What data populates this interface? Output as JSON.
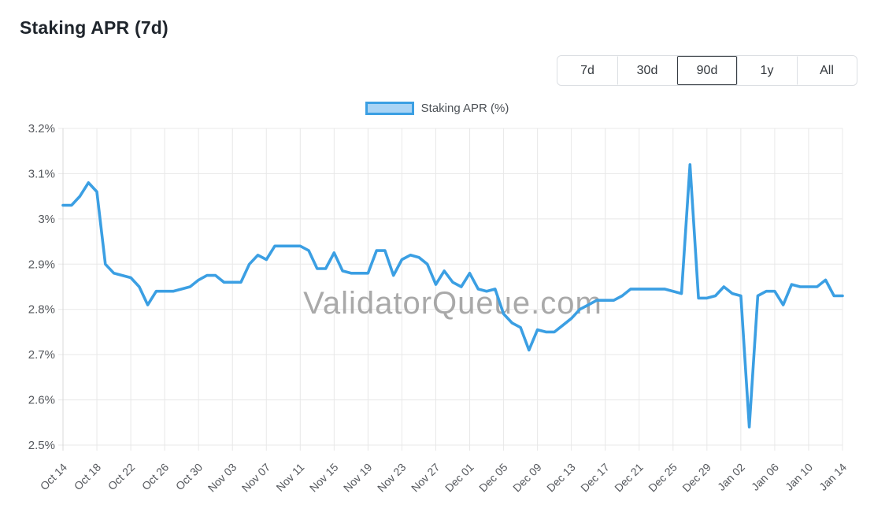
{
  "page": {
    "title": "Staking APR (7d)"
  },
  "range_buttons": {
    "items": [
      {
        "label": "7d",
        "active": false
      },
      {
        "label": "30d",
        "active": false
      },
      {
        "label": "90d",
        "active": true
      },
      {
        "label": "1y",
        "active": false
      },
      {
        "label": "All",
        "active": false
      }
    ]
  },
  "legend": {
    "label": "Staking APR (%)"
  },
  "watermark": "ValidatorQueue.com",
  "colors": {
    "line": "#3b9fe3",
    "legend_fill": "#a9d4f5",
    "grid": "#e8e8e8",
    "axis": "#d9d9d9",
    "tick_text": "#55585d",
    "watermark_text": "#9b9b9b",
    "active_button_border": "#363c42"
  },
  "chart_data": {
    "type": "line",
    "title": "Staking APR (7d)",
    "ylabel": "Staking APR (%)",
    "ylim": [
      2.5,
      3.2
    ],
    "y_ticks": [
      "3.2%",
      "3.1%",
      "3%",
      "2.9%",
      "2.8%",
      "2.7%",
      "2.6%",
      "2.5%"
    ],
    "y_tick_values": [
      3.2,
      3.1,
      3.0,
      2.9,
      2.8,
      2.7,
      2.6,
      2.5
    ],
    "grid": true,
    "legend_position": "top",
    "x_tick_step": 4,
    "x_tick_labels": [
      "Oct 14",
      "Oct 18",
      "Oct 22",
      "Oct 26",
      "Oct 30",
      "Nov 03",
      "Nov 07",
      "Nov 11",
      "Nov 15",
      "Nov 19",
      "Nov 23",
      "Nov 27",
      "Dec 01",
      "Dec 05",
      "Dec 09",
      "Dec 13",
      "Dec 17",
      "Dec 21",
      "Dec 25",
      "Dec 29",
      "Jan 02",
      "Jan 06",
      "Jan 10",
      "Jan 14"
    ],
    "x": [
      "Oct 14",
      "Oct 15",
      "Oct 16",
      "Oct 17",
      "Oct 18",
      "Oct 19",
      "Oct 20",
      "Oct 21",
      "Oct 22",
      "Oct 23",
      "Oct 24",
      "Oct 25",
      "Oct 26",
      "Oct 27",
      "Oct 28",
      "Oct 29",
      "Oct 30",
      "Oct 31",
      "Nov 01",
      "Nov 02",
      "Nov 03",
      "Nov 04",
      "Nov 05",
      "Nov 06",
      "Nov 07",
      "Nov 08",
      "Nov 09",
      "Nov 10",
      "Nov 11",
      "Nov 12",
      "Nov 13",
      "Nov 14",
      "Nov 15",
      "Nov 16",
      "Nov 17",
      "Nov 18",
      "Nov 19",
      "Nov 20",
      "Nov 21",
      "Nov 22",
      "Nov 23",
      "Nov 24",
      "Nov 25",
      "Nov 26",
      "Nov 27",
      "Nov 28",
      "Nov 29",
      "Nov 30",
      "Dec 01",
      "Dec 02",
      "Dec 03",
      "Dec 04",
      "Dec 05",
      "Dec 06",
      "Dec 07",
      "Dec 08",
      "Dec 09",
      "Dec 10",
      "Dec 11",
      "Dec 12",
      "Dec 13",
      "Dec 14",
      "Dec 15",
      "Dec 16",
      "Dec 17",
      "Dec 18",
      "Dec 19",
      "Dec 20",
      "Dec 21",
      "Dec 22",
      "Dec 23",
      "Dec 24",
      "Dec 25",
      "Dec 26",
      "Dec 27",
      "Dec 28",
      "Dec 29",
      "Dec 30",
      "Dec 31",
      "Jan 01",
      "Jan 02",
      "Jan 03",
      "Jan 04",
      "Jan 05",
      "Jan 06",
      "Jan 07",
      "Jan 08",
      "Jan 09",
      "Jan 10",
      "Jan 11",
      "Jan 12",
      "Jan 13",
      "Jan 14"
    ],
    "series": [
      {
        "name": "Staking APR (%)",
        "values": [
          3.03,
          3.03,
          3.05,
          3.08,
          3.06,
          2.9,
          2.88,
          2.875,
          2.87,
          2.85,
          2.81,
          2.84,
          2.84,
          2.84,
          2.845,
          2.85,
          2.865,
          2.875,
          2.875,
          2.86,
          2.86,
          2.86,
          2.9,
          2.92,
          2.91,
          2.94,
          2.94,
          2.94,
          2.94,
          2.93,
          2.89,
          2.89,
          2.925,
          2.885,
          2.88,
          2.88,
          2.88,
          2.93,
          2.93,
          2.875,
          2.91,
          2.92,
          2.915,
          2.9,
          2.855,
          2.885,
          2.86,
          2.85,
          2.88,
          2.845,
          2.84,
          2.845,
          2.79,
          2.77,
          2.76,
          2.71,
          2.755,
          2.75,
          2.75,
          2.765,
          2.78,
          2.8,
          2.81,
          2.82,
          2.82,
          2.82,
          2.83,
          2.845,
          2.845,
          2.845,
          2.845,
          2.845,
          2.84,
          2.835,
          3.12,
          2.825,
          2.825,
          2.83,
          2.85,
          2.835,
          2.83,
          2.54,
          2.83,
          2.84,
          2.84,
          2.81,
          2.855,
          2.85,
          2.85,
          2.85,
          2.865,
          2.83,
          2.83
        ]
      }
    ]
  }
}
